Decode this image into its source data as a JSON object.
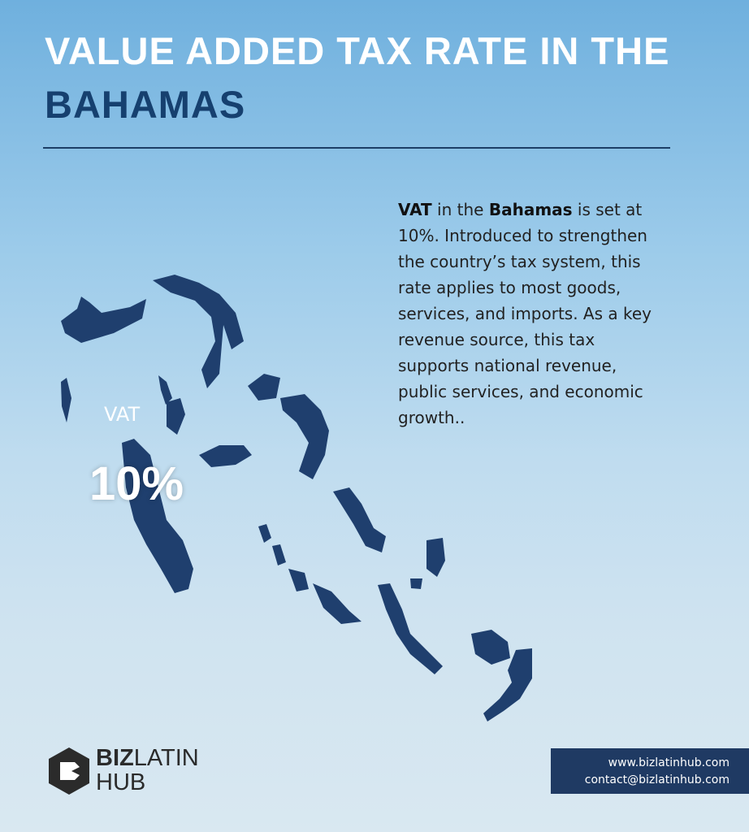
{
  "header": {
    "title_line1": "VALUE ADDED TAX RATE IN THE",
    "title_line2": "BAHAMAS"
  },
  "body": {
    "segments": [
      {
        "text": "VAT",
        "bold": true
      },
      {
        "text": " in the ",
        "bold": false
      },
      {
        "text": "Bahamas",
        "bold": true
      },
      {
        "text": " is set at 10%. Introduced to strengthen the country’s tax system, this rate applies to most goods, services, and imports. As a key revenue source, this tax supports national revenue, public services, and economic growth..",
        "bold": false
      }
    ]
  },
  "highlight": {
    "label": "VAT",
    "value": "10%"
  },
  "logo": {
    "part1": "BIZ",
    "part2": "LATIN",
    "part3": "HUB"
  },
  "contact": {
    "website": "www.bizlatinhub.com",
    "email": "contact@bizlatinhub.com"
  }
}
